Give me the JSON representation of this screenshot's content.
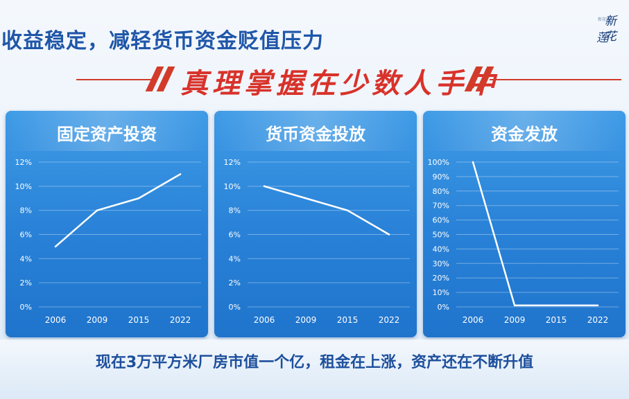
{
  "header": {
    "title": "收益稳定，减轻货币资金贬值压力",
    "banner": "真理掌握在少数人手中",
    "logo": {
      "line1": "新花",
      "line2": "莲",
      "small": "新花莲"
    }
  },
  "colors": {
    "title": "#1f56a8",
    "banner": "#d8322a",
    "panel": "#2a83d8",
    "line": "#ffffff"
  },
  "chart_data": [
    {
      "type": "line",
      "title": "固定资产投资",
      "x": [
        "2006",
        "2009",
        "2015",
        "2022"
      ],
      "series": [
        {
          "values": [
            5,
            8,
            9,
            11
          ]
        }
      ],
      "yticks": [
        "0%",
        "2%",
        "4%",
        "6%",
        "8%",
        "10%",
        "12%"
      ],
      "ylim": [
        0,
        12
      ],
      "grid": true
    },
    {
      "type": "line",
      "title": "货币资金投放",
      "x": [
        "2006",
        "2009",
        "2015",
        "2022"
      ],
      "series": [
        {
          "values": [
            10,
            9,
            8,
            6
          ]
        }
      ],
      "yticks": [
        "0%",
        "2%",
        "4%",
        "6%",
        "8%",
        "10%",
        "12%"
      ],
      "ylim": [
        0,
        12
      ],
      "grid": true
    },
    {
      "type": "line",
      "title": "资金发放",
      "x": [
        "2006",
        "2009",
        "2015",
        "2022"
      ],
      "series": [
        {
          "values": [
            100,
            1,
            1,
            1
          ]
        }
      ],
      "yticks": [
        "0%",
        "10%",
        "20%",
        "30%",
        "40%",
        "50%",
        "60%",
        "70%",
        "80%",
        "90%",
        "100%"
      ],
      "ylim": [
        0,
        100
      ],
      "grid": true
    }
  ],
  "footer": {
    "caption": "现在3万平方米厂房市值一个亿，租金在上涨，资产还在不断升值"
  }
}
